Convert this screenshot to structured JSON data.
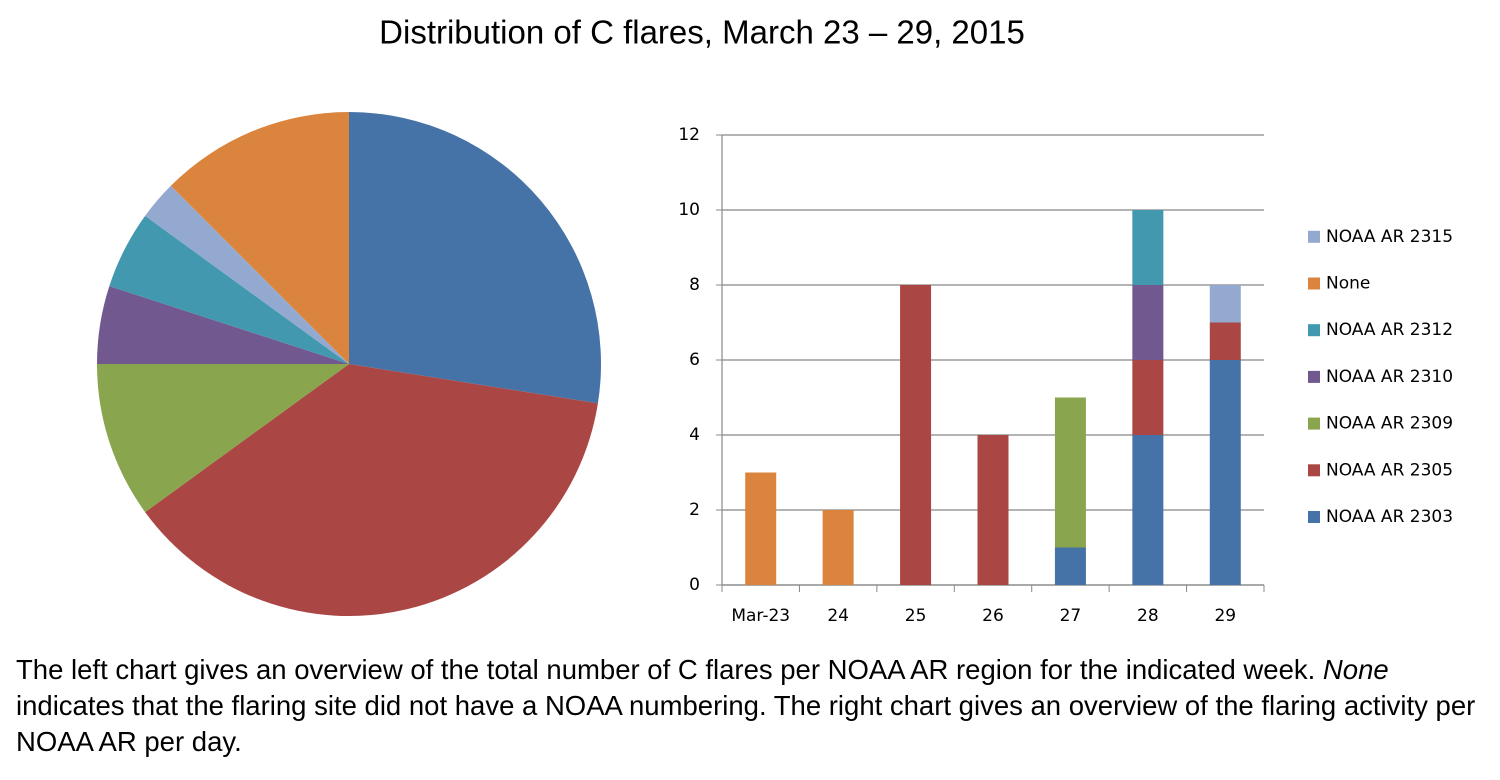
{
  "title": "Distribution of C flares, March 23 – 29, 2015",
  "chart_data": [
    {
      "type": "pie",
      "values": [
        11,
        15,
        4,
        2,
        2,
        1,
        5
      ],
      "colors": [
        "#4673a7",
        "#aa4643",
        "#89a54e",
        "#71588f",
        "#4198af",
        "#93a9cf",
        "#db843d"
      ]
    },
    {
      "type": "stacked_bar",
      "categories": [
        "Mar-23",
        "24",
        "25",
        "26",
        "27",
        "28",
        "29"
      ],
      "series": [
        {
          "name": "NOAA AR 2303",
          "color": "#4673a7",
          "values": [
            0,
            0,
            0,
            0,
            1,
            4,
            6
          ]
        },
        {
          "name": "NOAA AR 2305",
          "color": "#aa4643",
          "values": [
            0,
            0,
            8,
            4,
            0,
            2,
            1
          ]
        },
        {
          "name": "NOAA AR 2309",
          "color": "#89a54e",
          "values": [
            0,
            0,
            0,
            0,
            4,
            0,
            0
          ]
        },
        {
          "name": "NOAA AR 2310",
          "color": "#71588f",
          "values": [
            0,
            0,
            0,
            0,
            0,
            2,
            0
          ]
        },
        {
          "name": "NOAA AR 2312",
          "color": "#4198af",
          "values": [
            0,
            0,
            0,
            0,
            0,
            2,
            0
          ]
        },
        {
          "name": "None",
          "color": "#db843d",
          "values": [
            3,
            2,
            0,
            0,
            0,
            0,
            0
          ]
        },
        {
          "name": "NOAA AR 2315",
          "color": "#93a9cf",
          "values": [
            0,
            0,
            0,
            0,
            0,
            0,
            1
          ]
        }
      ],
      "ylim": [
        0,
        12
      ],
      "yticks": [
        0,
        2,
        4,
        6,
        8,
        10,
        12
      ],
      "grid": true,
      "legend": "right"
    }
  ],
  "caption": [
    "The left chart gives an overview of the total number of C flares per NOAA AR region for the indicated week. ",
    "None",
    " indicates that the flaring site did not have a NOAA numbering. The right chart gives an overview of the flaring activity per NOAA AR per day."
  ]
}
